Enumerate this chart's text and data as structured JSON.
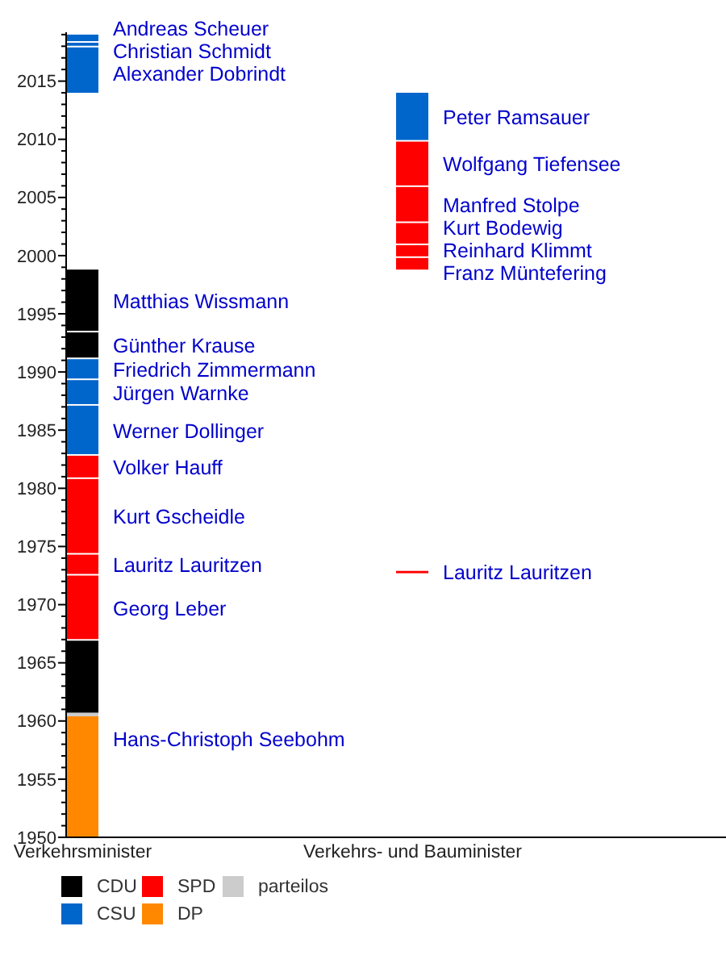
{
  "chart_data": {
    "type": "bar",
    "categories": [
      "Verkehrsminister",
      "Verkehrs- und Bauminister"
    ],
    "series": [
      {
        "name": "CDU",
        "color": "#000000",
        "x": [
          "Verkehrsminister",
          "Verkehrsminister",
          "Verkehrsminister"
        ],
        "base": [
          1960.7,
          1991.1,
          1993.4
        ],
        "values": [
          6.2,
          2.3,
          5.4
        ]
      },
      {
        "name": "CSU",
        "color": "#0066cc",
        "x": [
          "Verkehrsminister",
          "Verkehrsminister",
          "Verkehrsminister",
          "Verkehrsminister",
          "Verkehrsminister",
          "Verkehrsminister",
          "Verkehrs- und Bauminister"
        ],
        "base": [
          1982.8,
          1987.1,
          1989.3,
          2014.0,
          2017.9,
          2018.3,
          2009.8
        ],
        "values": [
          4.3,
          2.2,
          1.8,
          3.9,
          0.4,
          0.7,
          4.2
        ]
      },
      {
        "name": "SPD",
        "color": "#ff0000",
        "x": [
          "Verkehrsminister",
          "Verkehrsminister",
          "Verkehrsminister",
          "Verkehrsminister",
          "Verkehrs- und Bauminister",
          "Verkehrs- und Bauminister",
          "Verkehrs- und Bauminister",
          "Verkehrs- und Bauminister",
          "Verkehrs- und Bauminister",
          "Verkehrs- und Bauminister"
        ],
        "base": [
          1966.9,
          1972.5,
          1974.3,
          1980.8,
          1972.7,
          1998.8,
          1999.8,
          2000.9,
          2002.8,
          2005.9
        ],
        "values": [
          5.6,
          1.8,
          6.5,
          2.0,
          0.2,
          1.0,
          1.1,
          1.9,
          3.1,
          3.9
        ]
      },
      {
        "name": "DP",
        "color": "#ff8800",
        "x": [
          "Verkehrsminister"
        ],
        "base": [
          1950
        ],
        "values": [
          10.4
        ]
      },
      {
        "name": "parteilos",
        "color": "#cccccc",
        "x": [
          "Verkehrsminister"
        ],
        "base": [
          1960.4
        ],
        "values": [
          0.3
        ]
      }
    ],
    "annotations": [
      {
        "text": "Andreas Scheuer",
        "x": "Verkehrsminister",
        "y": 2019.0
      },
      {
        "text": "Christian Schmidt",
        "x": "Verkehrsminister",
        "y": 2018.3
      },
      {
        "text": "Alexander Dobrindt",
        "x": "Verkehrsminister",
        "y": 2017.9
      },
      {
        "text": "Matthias Wissmann",
        "x": "Verkehrsminister",
        "y": 1998.8
      },
      {
        "text": "Günther Krause",
        "x": "Verkehrsminister",
        "y": 1993.4
      },
      {
        "text": "Friedrich Zimmermann",
        "x": "Verkehrsminister",
        "y": 1991.1
      },
      {
        "text": "Jürgen Warnke",
        "x": "Verkehrsminister",
        "y": 1989.3
      },
      {
        "text": "Werner Dollinger",
        "x": "Verkehrsminister",
        "y": 1987.1
      },
      {
        "text": "Volker Hauff",
        "x": "Verkehrsminister",
        "y": 1982.8
      },
      {
        "text": "Kurt Gscheidle",
        "x": "Verkehrsminister",
        "y": 1980.8
      },
      {
        "text": "Lauritz Lauritzen",
        "x": "Verkehrsminister",
        "y": 1974.3
      },
      {
        "text": "Georg Leber",
        "x": "Verkehrsminister",
        "y": 1972.5
      },
      {
        "text": "Hans-Christoph Seebohm",
        "x": "Verkehrsminister",
        "y": 1960.4
      },
      {
        "text": "Peter Ramsauer",
        "x": "Verkehrs- und Bauminister",
        "y": 2014.0
      },
      {
        "text": "Wolfgang Tiefensee",
        "x": "Verkehrs- und Bauminister",
        "y": 2009.8
      },
      {
        "text": "Manfred Stolpe",
        "x": "Verkehrs- und Bauminister",
        "y": 2005.9
      },
      {
        "text": "Kurt Bodewig",
        "x": "Verkehrs- und Bauminister",
        "y": 2002.8
      },
      {
        "text": "Reinhard Klimmt",
        "x": "Verkehrs- und Bauminister",
        "y": 2000.9
      },
      {
        "text": "Franz Müntefering",
        "x": "Verkehrs- und Bauminister",
        "y": 1999.8
      },
      {
        "text": "Lauritz Lauritzen",
        "x": "Verkehrs- und Bauminister",
        "y": 1972.9
      }
    ],
    "ylim": [
      1950,
      2019.2
    ],
    "yticks": [
      1950,
      {
        "value": 1951,
        "label": null
      },
      {
        "value": 1952,
        "label": null
      },
      {
        "value": 1953,
        "label": null
      },
      {
        "value": 1954,
        "label": null
      },
      1955,
      {
        "value": 1956,
        "label": null
      },
      {
        "value": 1957,
        "label": null
      },
      {
        "value": 1958,
        "label": null
      },
      {
        "value": 1959,
        "label": null
      },
      1960,
      {
        "value": 1961,
        "label": null
      },
      {
        "value": 1962,
        "label": null
      },
      {
        "value": 1963,
        "label": null
      },
      {
        "value": 1964,
        "label": null
      },
      1965,
      {
        "value": 1966,
        "label": null
      },
      {
        "value": 1967,
        "label": null
      },
      {
        "value": 1968,
        "label": null
      },
      {
        "value": 1969,
        "label": null
      },
      1970,
      {
        "value": 1971,
        "label": null
      },
      {
        "value": 1972,
        "label": null
      },
      {
        "value": 1973,
        "label": null
      },
      {
        "value": 1974,
        "label": null
      },
      1975,
      {
        "value": 1976,
        "label": null
      },
      {
        "value": 1977,
        "label": null
      },
      {
        "value": 1978,
        "label": null
      },
      {
        "value": 1979,
        "label": null
      },
      1980,
      {
        "value": 1981,
        "label": null
      },
      {
        "value": 1982,
        "label": null
      },
      {
        "value": 1983,
        "label": null
      },
      {
        "value": 1984,
        "label": null
      },
      1985,
      {
        "value": 1986,
        "label": null
      },
      {
        "value": 1987,
        "label": null
      },
      {
        "value": 1988,
        "label": null
      },
      {
        "value": 1989,
        "label": null
      },
      1990,
      {
        "value": 1991,
        "label": null
      },
      {
        "value": 1992,
        "label": null
      },
      {
        "value": 1993,
        "label": null
      },
      {
        "value": 1994,
        "label": null
      },
      1995,
      {
        "value": 1996,
        "label": null
      },
      {
        "value": 1997,
        "label": null
      },
      {
        "value": 1998,
        "label": null
      },
      {
        "value": 1999,
        "label": null
      },
      2000,
      {
        "value": 2001,
        "label": null
      },
      {
        "value": 2002,
        "label": null
      },
      {
        "value": 2003,
        "label": null
      },
      {
        "value": 2004,
        "label": null
      },
      2005,
      {
        "value": 2006,
        "label": null
      },
      {
        "value": 2007,
        "label": null
      },
      {
        "value": 2008,
        "label": null
      },
      {
        "value": 2009,
        "label": null
      },
      2010,
      {
        "value": 2011,
        "label": null
      },
      {
        "value": 2012,
        "label": null
      },
      {
        "value": 2013,
        "label": null
      },
      {
        "value": 2014,
        "label": null
      },
      2015,
      {
        "value": 2016,
        "label": null
      },
      {
        "value": 2017,
        "label": null
      },
      {
        "value": 2018,
        "label": null
      },
      {
        "value": 2019,
        "label": null
      }
    ],
    "legend": "bottom"
  }
}
